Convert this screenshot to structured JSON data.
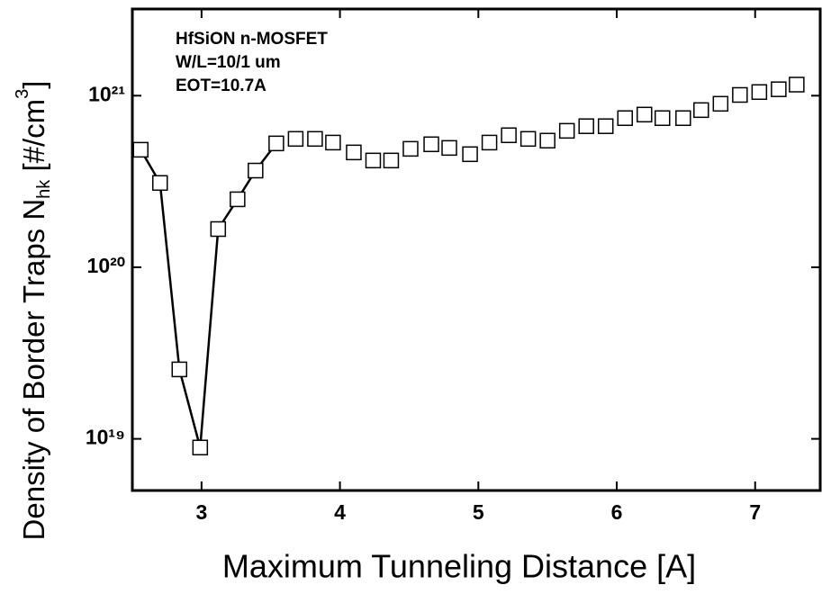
{
  "chart_data": {
    "type": "scatter",
    "log_y": true,
    "xlabel": "Maximum Tunneling Distance [A]",
    "ylabel": [
      "Density of Border Traps N",
      "hk",
      " [#/cm",
      "3",
      "]"
    ],
    "annotations": [
      "HfSiON n-MOSFET",
      "W/L=10/1 um",
      "EOT=10.7A"
    ],
    "xlim": [
      2.5,
      7.47
    ],
    "xticks": [
      3,
      4,
      5,
      6,
      7
    ],
    "ylim": [
      5e+18,
      3.2e+21
    ],
    "yticks": [
      {
        "value": 1e+19,
        "label": "10¹⁹"
      },
      {
        "value": 1e+20,
        "label": "10²⁰"
      },
      {
        "value": 1e+21,
        "label": "10²¹"
      }
    ],
    "series": [
      {
        "color": "#000000",
        "line": true,
        "x": [
          2.56,
          2.7,
          2.84,
          2.99,
          3.12,
          3.26,
          3.39,
          3.54
        ],
        "values": [
          4.84e+20,
          3.1e+20,
          2.54e+19,
          8.9e+18,
          1.67e+20,
          2.49e+20,
          3.66e+20,
          5.27e+20
        ]
      },
      {
        "color": "#000000",
        "line": false,
        "x": [
          3.68,
          3.82,
          3.95,
          4.1,
          4.24,
          4.37,
          4.51,
          4.66,
          4.79,
          4.94,
          5.08,
          5.22,
          5.36,
          5.5,
          5.64,
          5.78,
          5.92,
          6.06,
          6.2,
          6.33,
          6.48,
          6.61,
          6.75,
          6.89,
          7.03,
          7.17,
          7.3
        ],
        "values": [
          5.6e+20,
          5.6e+20,
          5.33e+20,
          4.67e+20,
          4.19e+20,
          4.19e+20,
          4.9e+20,
          5.21e+20,
          4.96e+20,
          4.56e+20,
          5.33e+20,
          5.88e+20,
          5.6e+20,
          5.47e+20,
          6.24e+20,
          6.64e+20,
          6.64e+20,
          7.4e+20,
          7.76e+20,
          7.4e+20,
          7.4e+20,
          8.24e+20,
          8.97e+20,
          1.01e+21,
          1.05e+21,
          1.09e+21,
          1.16e+21
        ]
      }
    ]
  }
}
